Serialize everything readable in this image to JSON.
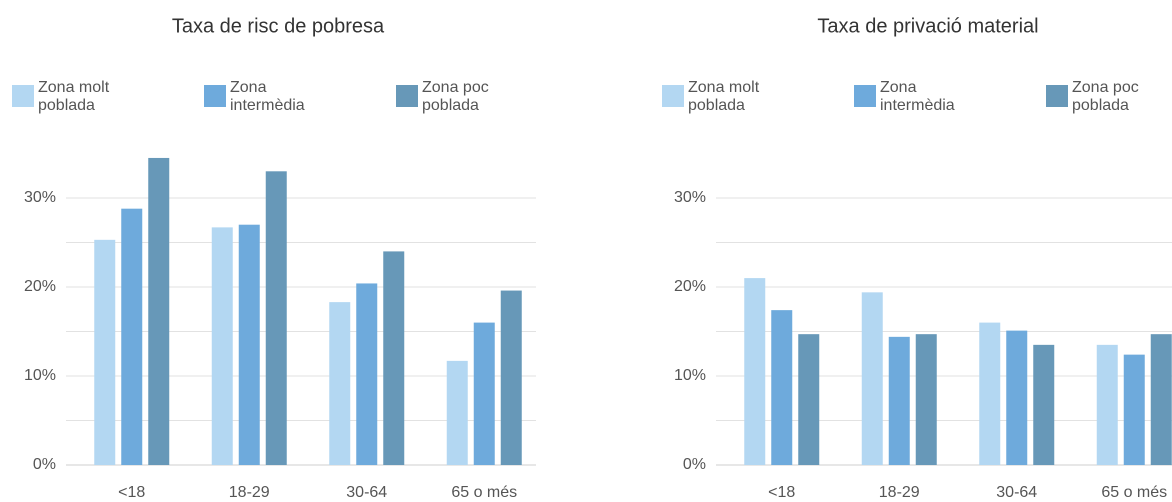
{
  "chart_data": [
    {
      "type": "bar",
      "title": "Taxa de risc de pobresa",
      "categories": [
        "<18",
        "18-29",
        "30-64",
        "65 o més"
      ],
      "series": [
        {
          "name": "Zona molt poblada",
          "color": "#b3d7f2",
          "values": [
            25.3,
            26.7,
            18.3,
            11.7
          ]
        },
        {
          "name": "Zona intermèdia",
          "color": "#6eaadc",
          "values": [
            28.8,
            27.0,
            20.4,
            16.0
          ]
        },
        {
          "name": "Zona poc poblada",
          "color": "#6798b8",
          "values": [
            34.5,
            33.0,
            24.0,
            19.6
          ]
        }
      ],
      "ylim": [
        0,
        35
      ],
      "yticks": [
        {
          "value": 0,
          "label": "0%"
        },
        {
          "value": 10,
          "label": "10%"
        },
        {
          "value": 20,
          "label": "20%"
        },
        {
          "value": 30,
          "label": "30%"
        }
      ],
      "minor_yticks": [
        5,
        15,
        25
      ],
      "grid": true,
      "legend": "top"
    },
    {
      "type": "bar",
      "title": "Taxa de privació material",
      "categories": [
        "<18",
        "18-29",
        "30-64",
        "65 o més"
      ],
      "series": [
        {
          "name": "Zona molt poblada",
          "color": "#b3d7f2",
          "values": [
            21.0,
            19.4,
            16.0,
            13.5
          ]
        },
        {
          "name": "Zona intermèdia",
          "color": "#6eaadc",
          "values": [
            17.4,
            14.4,
            15.1,
            12.4
          ]
        },
        {
          "name": "Zona poc poblada",
          "color": "#6798b8",
          "values": [
            14.7,
            14.7,
            13.5,
            14.7
          ]
        }
      ],
      "ylim": [
        0,
        35
      ],
      "yticks": [
        {
          "value": 0,
          "label": "0%"
        },
        {
          "value": 10,
          "label": "10%"
        },
        {
          "value": 20,
          "label": "20%"
        },
        {
          "value": 30,
          "label": "30%"
        }
      ],
      "minor_yticks": [
        5,
        15,
        25
      ],
      "grid": true,
      "legend": "top"
    }
  ]
}
